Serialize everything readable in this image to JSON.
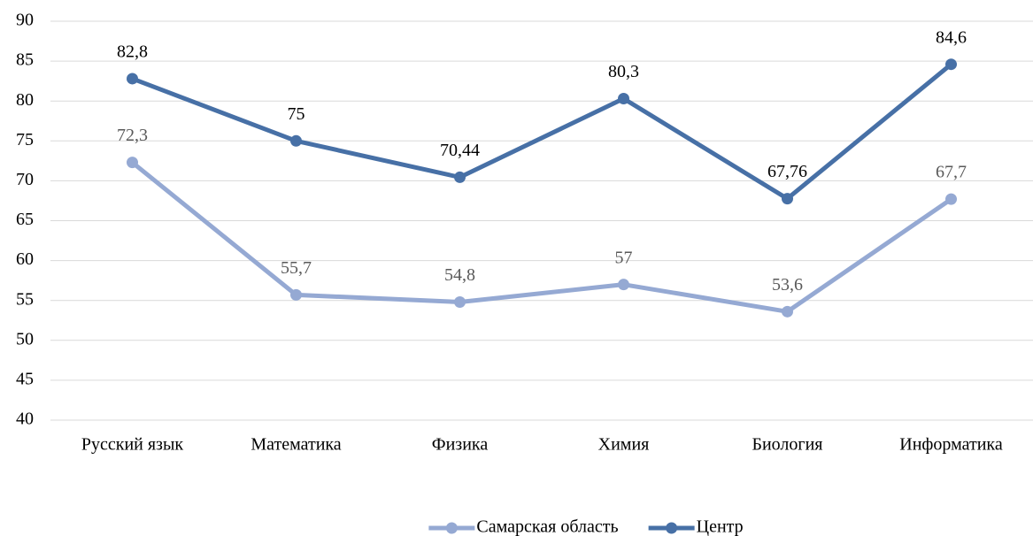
{
  "chart_data": {
    "type": "line",
    "categories": [
      "Русский язык",
      "Математика",
      "Физика",
      "Химия",
      "Биология",
      "Информатика"
    ],
    "series": [
      {
        "name": "Самарская область",
        "color": "#95a9d3",
        "values": [
          72.3,
          55.7,
          54.8,
          57,
          53.6,
          67.7
        ],
        "value_labels": [
          "72,3",
          "55,7",
          "54,8",
          "57",
          "53,6",
          "67,7"
        ]
      },
      {
        "name": "Центр",
        "color": "#4770a6",
        "values": [
          82.8,
          75,
          70.44,
          80.3,
          67.76,
          84.6
        ],
        "value_labels": [
          "82,8",
          "75",
          "70,44",
          "80,3",
          "67,76",
          "84,6"
        ]
      }
    ],
    "ylim": [
      40,
      90
    ],
    "yticks": [
      40,
      45,
      50,
      55,
      60,
      65,
      70,
      75,
      80,
      85,
      90
    ],
    "grid": true,
    "legend": "bottom"
  }
}
